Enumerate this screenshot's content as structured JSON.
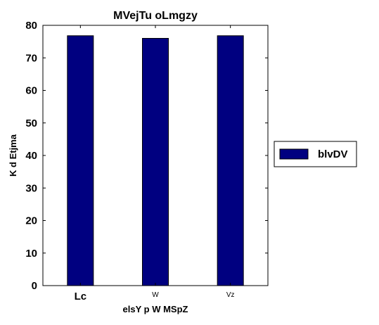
{
  "chart_data": {
    "type": "bar",
    "title": "MVejTu oLmgzy",
    "xlabel": "elsY p W MSpZ",
    "ylabel": "K d Etjma",
    "categories": [
      "Lc",
      "W",
      "Vz"
    ],
    "series": [
      {
        "name": "blvDV",
        "values": [
          76.8,
          76.0,
          76.8
        ],
        "color": "#000080"
      }
    ],
    "ylim": [
      0,
      80
    ],
    "yticks": [
      0,
      10,
      20,
      30,
      40,
      50,
      60,
      70,
      80
    ],
    "legend": "outside-right",
    "grid": false
  }
}
